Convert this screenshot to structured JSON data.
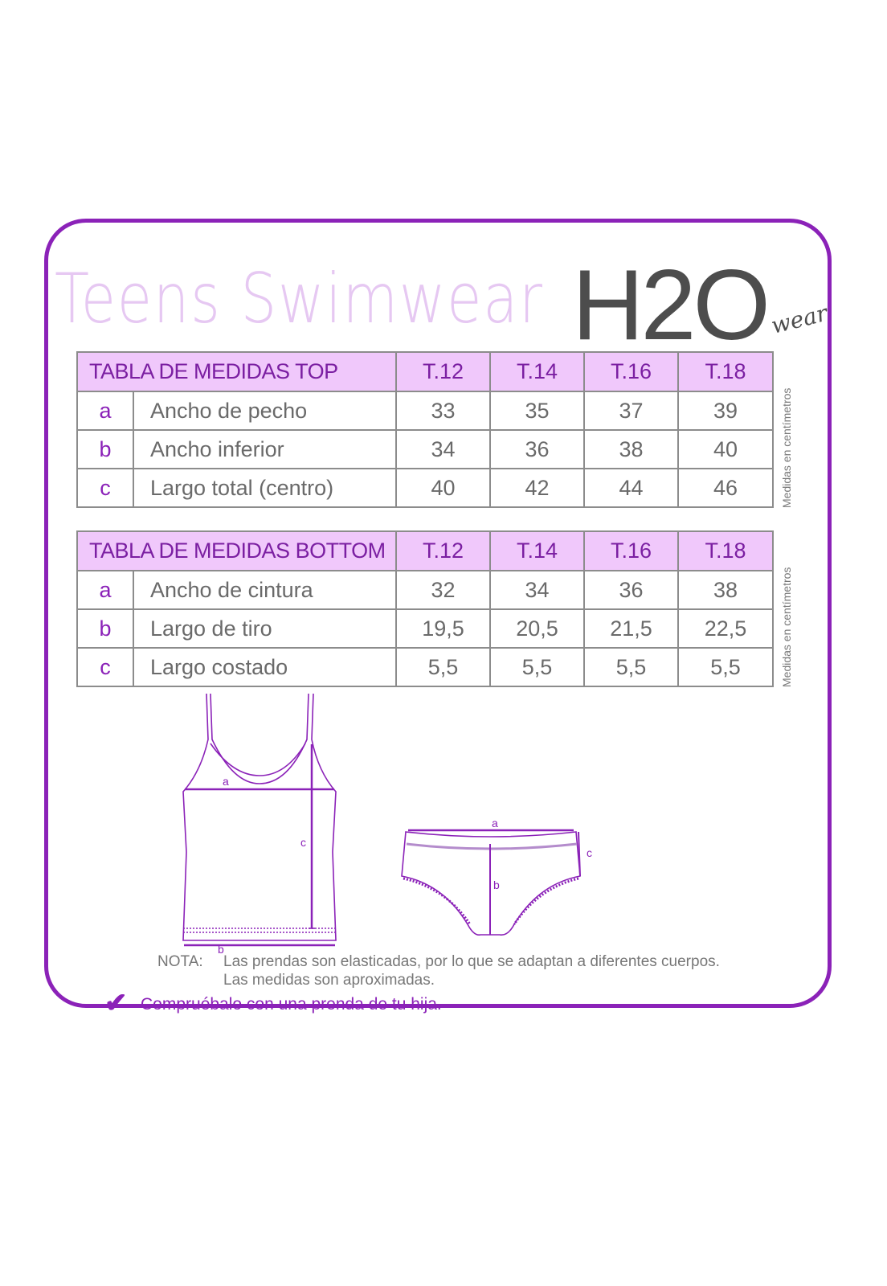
{
  "title": "Teens Swimwear",
  "brand": {
    "main": "H2O",
    "sub": "wear"
  },
  "colors": {
    "accent": "#8b22b8",
    "header_bg": "#f0c8fb",
    "title": "#e6c8f2",
    "text": "#6a6a6a"
  },
  "sizes": [
    "T.12",
    "T.14",
    "T.16",
    "T.18"
  ],
  "unit_note": "Medidas en centímetros",
  "top_table": {
    "title": "TABLA DE MEDIDAS TOP",
    "rows": [
      {
        "letter": "a",
        "label": "Ancho de pecho",
        "values": [
          "33",
          "35",
          "37",
          "39"
        ]
      },
      {
        "letter": "b",
        "label": "Ancho inferior",
        "values": [
          "34",
          "36",
          "38",
          "40"
        ]
      },
      {
        "letter": "c",
        "label": "Largo total (centro)",
        "values": [
          "40",
          "42",
          "44",
          "46"
        ]
      }
    ]
  },
  "bottom_table": {
    "title": "TABLA DE MEDIDAS BOTTOM",
    "rows": [
      {
        "letter": "a",
        "label": "Ancho de cintura",
        "values": [
          "32",
          "34",
          "36",
          "38"
        ]
      },
      {
        "letter": "b",
        "label": "Largo de tiro",
        "values": [
          "19,5",
          "20,5",
          "21,5",
          "22,5"
        ]
      },
      {
        "letter": "c",
        "label": "Largo costado",
        "values": [
          "5,5",
          "5,5",
          "5,5",
          "5,5"
        ]
      }
    ]
  },
  "diagram_labels": {
    "top_a": "a",
    "top_b": "b",
    "top_c": "c",
    "bottom_a": "a",
    "bottom_b": "b",
    "bottom_c": "c"
  },
  "note": {
    "label": "NOTA:",
    "line1": "Las prendas son elasticadas, por lo que se adaptan a diferentes cuerpos.",
    "line2": "Las medidas son aproximadas."
  },
  "check_text": "Compruébalo con una prenda de tu hija."
}
